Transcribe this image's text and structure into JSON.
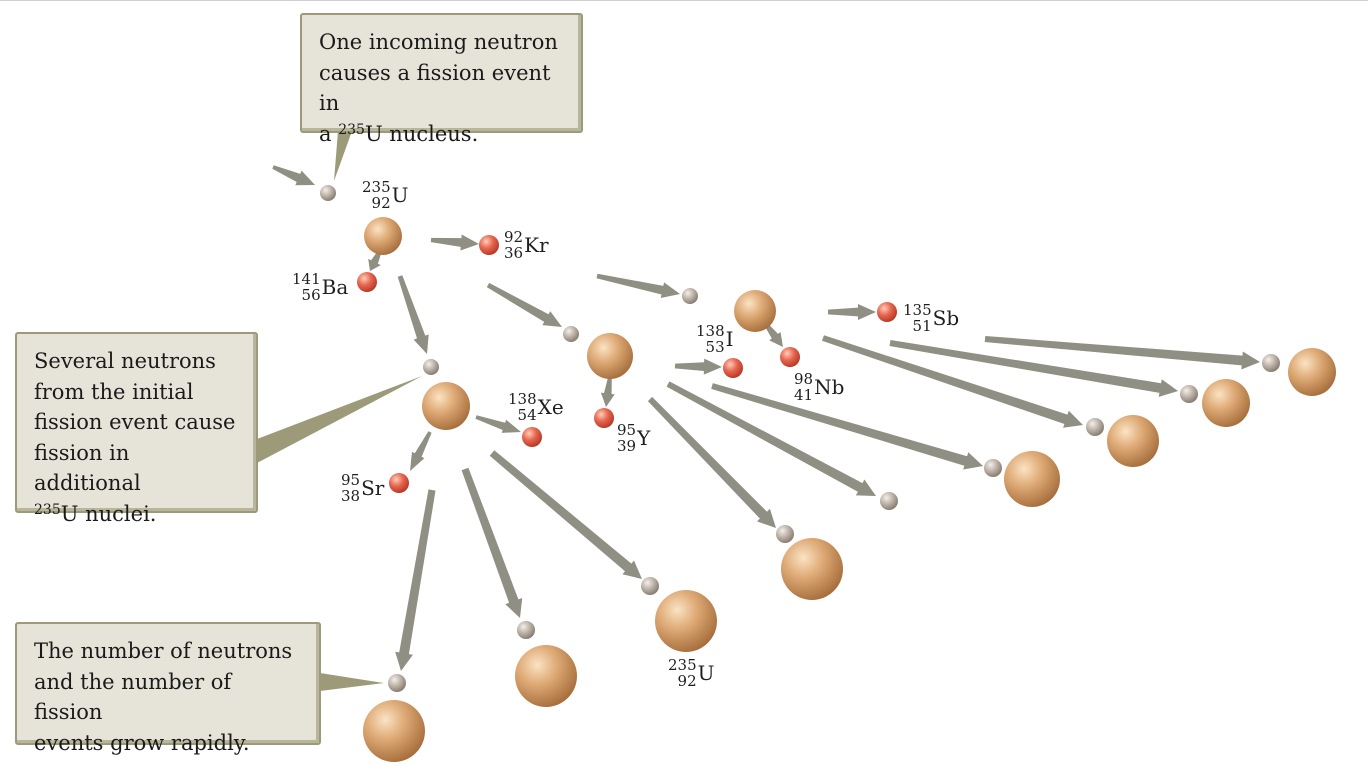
{
  "callouts": {
    "incoming": {
      "line1": "One incoming neutron",
      "line2": "causes a fission event in",
      "line3_prefix": "a ",
      "line3_sup": "235",
      "line3_suffix": "U nucleus."
    },
    "several": {
      "line1": "Several neutrons",
      "line2": "from the initial",
      "line3": "fission event cause",
      "line4": "fission in additional",
      "line5_sup": "235",
      "line5_suffix": "U nuclei."
    },
    "growth": {
      "line1": "The number of neutrons",
      "line2": "and the number of fission",
      "line3": "events grow rapidly."
    }
  },
  "isotopes": {
    "u_top": {
      "mass": "235",
      "atomic": "92",
      "symbol": "U"
    },
    "kr": {
      "mass": "92",
      "atomic": "36",
      "symbol": "Kr"
    },
    "ba": {
      "mass": "141",
      "atomic": "56",
      "symbol": "Ba"
    },
    "sb": {
      "mass": "135",
      "atomic": "51",
      "symbol": "Sb"
    },
    "i": {
      "mass": "138",
      "atomic": "53",
      "symbol": "I"
    },
    "nb": {
      "mass": "98",
      "atomic": "41",
      "symbol": "Nb"
    },
    "xe": {
      "mass": "138",
      "atomic": "54",
      "symbol": "Xe"
    },
    "y": {
      "mass": "95",
      "atomic": "39",
      "symbol": "Y"
    },
    "sr": {
      "mass": "95",
      "atomic": "38",
      "symbol": "Sr"
    },
    "u_bottom": {
      "mass": "235",
      "atomic": "92",
      "symbol": "U"
    }
  },
  "colors": {
    "neutron": "#b9aea2",
    "uranium": "#d9a46e",
    "fragment": "#e2604c",
    "arrow": "#8a897c",
    "callout_fill": "#e6e3d8",
    "callout_border": "#9c9a78"
  }
}
